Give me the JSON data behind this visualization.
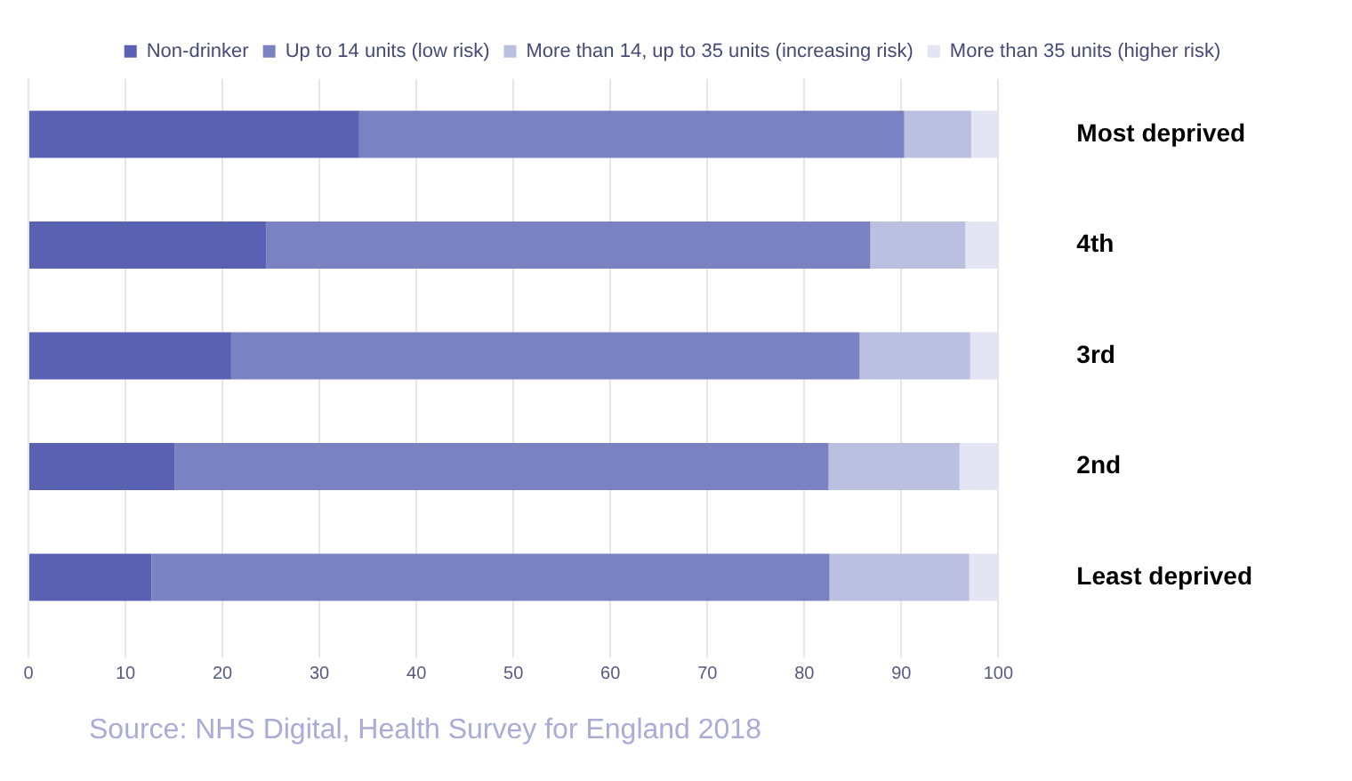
{
  "chart_data": {
    "type": "bar",
    "orientation": "horizontal",
    "stacked": true,
    "categories": [
      "Most deprived",
      "4th",
      "3rd",
      "2nd",
      "Least deprived"
    ],
    "series": [
      {
        "name": "Non-drinker",
        "color": "#5a61b3",
        "values": [
          34.1,
          24.5,
          20.9,
          15.1,
          12.7
        ]
      },
      {
        "name": "Up to 14 units (low risk)",
        "color": "#7b82c1",
        "values": [
          56.2,
          62.3,
          64.8,
          67.4,
          69.9
        ]
      },
      {
        "name": "More than 14, up to 35 units (increasing risk)",
        "color": "#bcc0e0",
        "values": [
          6.9,
          9.8,
          11.4,
          13.5,
          14.4
        ]
      },
      {
        "name": "More than 35 units (higher risk)",
        "color": "#e4e5f2",
        "values": [
          2.8,
          3.4,
          2.9,
          4.0,
          3.0
        ]
      }
    ],
    "xlim": [
      0,
      100
    ],
    "xticks": [
      0,
      10,
      20,
      30,
      40,
      50,
      60,
      70,
      80,
      90,
      100
    ],
    "grid": "x",
    "legend": "top",
    "annotations": [
      "Source: NHS Digital, Health Survey for England 2018"
    ]
  }
}
